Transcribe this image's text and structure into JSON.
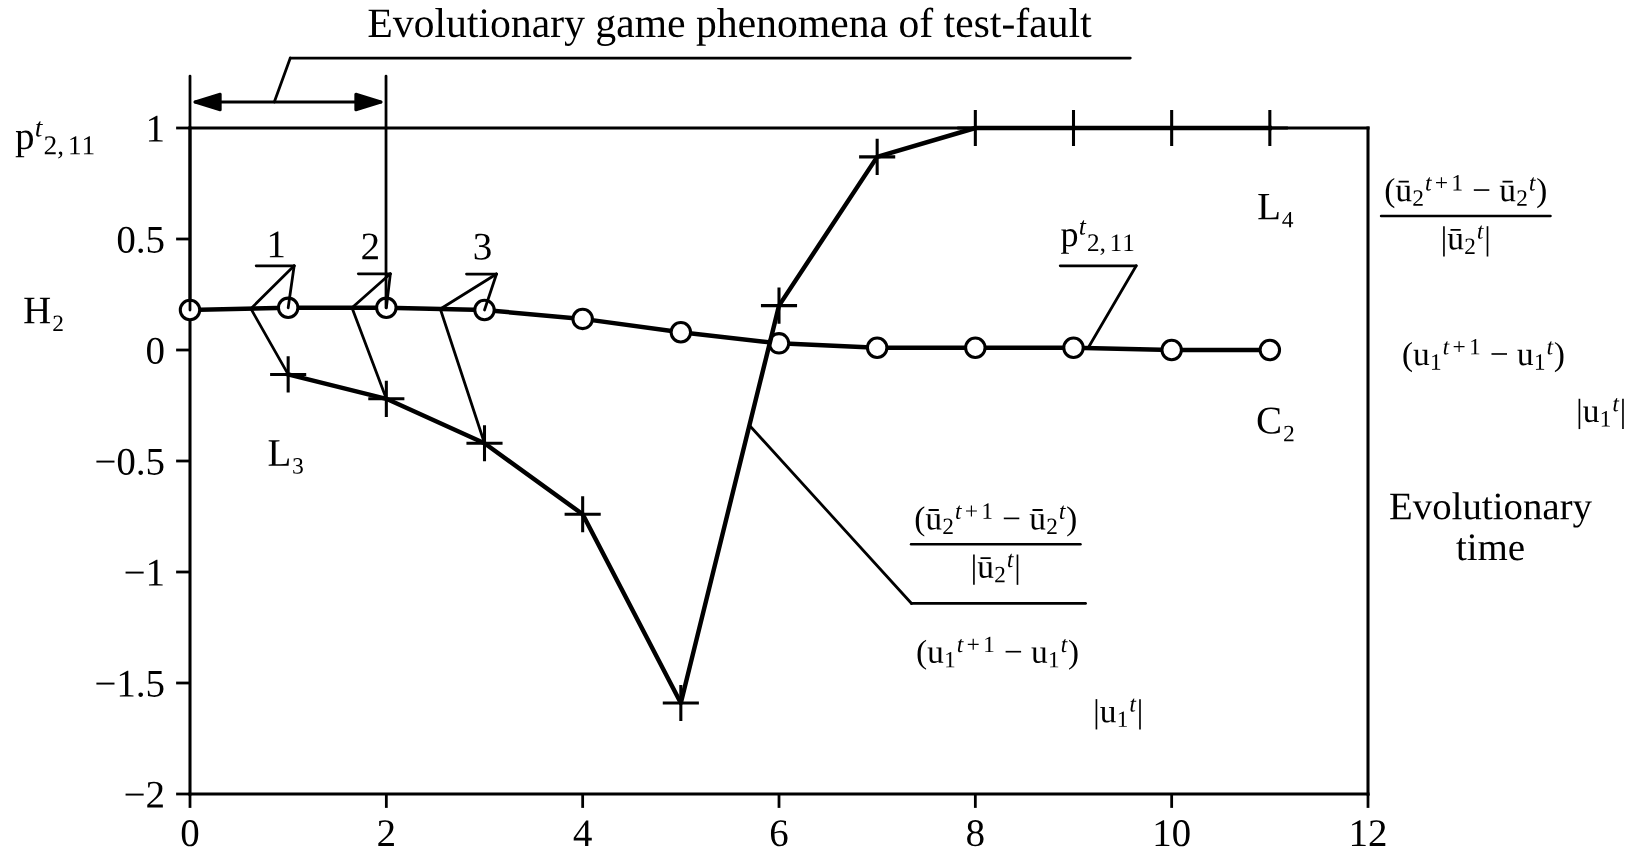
{
  "chart_data": {
    "type": "line",
    "title": "Evolutionary game phenomena of test-fault",
    "xlabel": "Evolutionary\ntime",
    "ylabel": "p$^{t}$$_{2,11}$",
    "xlim": [
      0,
      12
    ],
    "ylim": [
      -2,
      1
    ],
    "xticks": [
      0,
      2,
      4,
      6,
      8,
      10,
      12
    ],
    "yticks": [
      -2,
      -1.5,
      -1,
      -0.5,
      0,
      0.5,
      1
    ],
    "line_style": "solid",
    "series": [
      {
        "color": "#000000",
        "marker": "circle",
        "x": [
          0,
          1,
          2,
          3,
          4,
          5,
          6,
          7,
          8,
          9,
          10,
          11
        ],
        "values": [
          0.18,
          0.19,
          0.19,
          0.18,
          0.14,
          0.08,
          0.03,
          0.01,
          0.01,
          0.01,
          0,
          0
        ]
      },
      {
        "color": "#000000",
        "marker": "cross",
        "x": [
          1,
          2,
          3,
          4,
          5,
          6,
          7,
          8,
          9,
          10,
          11
        ],
        "values": [
          -0.11,
          -0.22,
          -0.42,
          -0.74,
          -1.59,
          0.2,
          0.87,
          1,
          1,
          1,
          1
        ]
      }
    ],
    "annotations": [
      "H₂",
      {
        "text": "1",
        "x": 1,
        "y": 0.19
      },
      {
        "text": "2",
        "x": 2,
        "y": 0.19
      },
      {
        "text": "3",
        "x": 3,
        "y": 0.18
      },
      {
        "text": "L₃",
        "x": 1,
        "y": -0.11
      },
      {
        "text": "L₄",
        "x": 11,
        "y": 1
      },
      {
        "text": "C₂",
        "x": 11,
        "y": 0
      },
      {
        "text": "p$^{t}$$_{2,11}$",
        "x": 9.15,
        "y": 0.01
      },
      "(ū$_{2}$$^{t+1}$ − ū$_{2}$$^{t}$)\n|ū$_{2}$$^{t}$|",
      {
        "text": "(u$_{1}$$^{t+1}$ − u$_{1}$$^{t}$)",
        "x": 5.7,
        "y": -0.34
      },
      "|u$_{1}$$^{t}$|",
      "(ū$_{2}$$^{t+1}$ − ū$_{2}$$^{t}$)\n|ū$_{2}$$^{t}$|",
      "(u$_{1}$$^{t+1}$ − u$_{1}$$^{t}$)",
      "|u$_{1}$$^{t}$|"
    ]
  }
}
